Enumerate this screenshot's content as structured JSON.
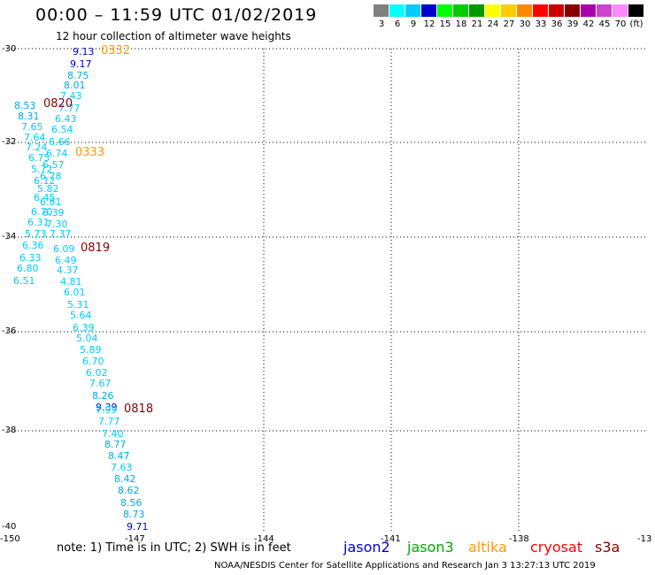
{
  "header": {
    "title": "00:00 – 11:59 UTC 01/02/2019",
    "subtitle": "12 hour collection of altimeter wave heights"
  },
  "scale": {
    "colors": [
      "#808080",
      "#00ffff",
      "#00ccff",
      "#0000cc",
      "#00ff00",
      "#00cc00",
      "#009900",
      "#ffff00",
      "#ffcc00",
      "#ff8800",
      "#ff0000",
      "#cc0000",
      "#880000",
      "#aa00aa",
      "#cc44cc",
      "#ff88ff",
      "#000000"
    ],
    "labels": [
      "3",
      "6",
      "9",
      "12",
      "15",
      "18",
      "21",
      "24",
      "27",
      "30",
      "33",
      "36",
      "39",
      "42",
      "45",
      "70",
      "(ft)"
    ]
  },
  "axes": {
    "lat_labels": [
      "-30",
      "-32",
      "-34",
      "-36",
      "-38",
      "-40"
    ],
    "lon_labels": [
      "-150",
      "-147",
      "-144",
      "-141",
      "-138",
      "-13"
    ]
  },
  "passes": [
    {
      "time": "0332",
      "color": "#ff9900"
    },
    {
      "time": "0820",
      "color": "#880000"
    },
    {
      "time": "0333",
      "color": "#ff9900"
    },
    {
      "time": "0819",
      "color": "#880000"
    },
    {
      "time": "0818",
      "color": "#880000"
    }
  ],
  "points": [
    {
      "v": "9.13",
      "c": "#0000cc"
    },
    {
      "v": "9.17",
      "c": "#0000cc"
    },
    {
      "v": "8.75",
      "c": "#00aaee"
    },
    {
      "v": "8.01",
      "c": "#00aaee"
    },
    {
      "v": "7.43",
      "c": "#00ccff"
    },
    {
      "v": "7.77",
      "c": "#00ccff"
    },
    {
      "v": "8.53",
      "c": "#00aaee"
    },
    {
      "v": "8.31",
      "c": "#00aaee"
    },
    {
      "v": "6.43",
      "c": "#00ccff"
    },
    {
      "v": "7.65",
      "c": "#00ccff"
    },
    {
      "v": "6.54",
      "c": "#00ccff"
    },
    {
      "v": "7.64",
      "c": "#00ccff"
    },
    {
      "v": "6.66",
      "c": "#00ccff"
    },
    {
      "v": "7.24",
      "c": "#00ccff"
    },
    {
      "v": "6.74",
      "c": "#00ccff"
    },
    {
      "v": "6.75",
      "c": "#00ccff"
    },
    {
      "v": "6.57",
      "c": "#00ccff"
    },
    {
      "v": "5.72",
      "c": "#00ccff"
    },
    {
      "v": "6.78",
      "c": "#00ccff"
    },
    {
      "v": "6.12",
      "c": "#00ccff"
    },
    {
      "v": "5.82",
      "c": "#00ccff"
    },
    {
      "v": "6.45",
      "c": "#00ccff"
    },
    {
      "v": "6.81",
      "c": "#00ccff"
    },
    {
      "v": "6.70",
      "c": "#00ccff"
    },
    {
      "v": "6.39",
      "c": "#00ccff"
    },
    {
      "v": "6.31",
      "c": "#00ccff"
    },
    {
      "v": "7.30",
      "c": "#00ccff"
    },
    {
      "v": "5.73",
      "c": "#00ccff"
    },
    {
      "v": "7.37",
      "c": "#00ccff"
    },
    {
      "v": "6.36",
      "c": "#00ccff"
    },
    {
      "v": "6.09",
      "c": "#00ccff"
    },
    {
      "v": "6.33",
      "c": "#00ccff"
    },
    {
      "v": "6.49",
      "c": "#00ccff"
    },
    {
      "v": "6.80",
      "c": "#00ccff"
    },
    {
      "v": "4.37",
      "c": "#00ccff"
    },
    {
      "v": "6.51",
      "c": "#00ccff"
    },
    {
      "v": "4.81",
      "c": "#00ccff"
    },
    {
      "v": "6.01",
      "c": "#00ccff"
    },
    {
      "v": "5.31",
      "c": "#00ccff"
    },
    {
      "v": "5.64",
      "c": "#00ccff"
    },
    {
      "v": "6.39",
      "c": "#00ccff"
    },
    {
      "v": "5.04",
      "c": "#00ccff"
    },
    {
      "v": "5.89",
      "c": "#00ccff"
    },
    {
      "v": "6.70",
      "c": "#00ccff"
    },
    {
      "v": "6.02",
      "c": "#00ccff"
    },
    {
      "v": "7.67",
      "c": "#00ccff"
    },
    {
      "v": "8.26",
      "c": "#00aaee"
    },
    {
      "v": "9.39",
      "c": "#0000cc"
    },
    {
      "v": "7.99",
      "c": "#00ccff"
    },
    {
      "v": "7.77",
      "c": "#00ccff"
    },
    {
      "v": "7.40",
      "c": "#00ccff"
    },
    {
      "v": "8.77",
      "c": "#00aaee"
    },
    {
      "v": "8.47",
      "c": "#00aaee"
    },
    {
      "v": "7.63",
      "c": "#00ccff"
    },
    {
      "v": "8.42",
      "c": "#00aaee"
    },
    {
      "v": "8.62",
      "c": "#00aaee"
    },
    {
      "v": "8.56",
      "c": "#00aaee"
    },
    {
      "v": "8.73",
      "c": "#00aaee"
    },
    {
      "v": "9.71",
      "c": "#0000cc"
    }
  ],
  "footer": {
    "note": "note: 1) Time is in UTC; 2) SWH is in feet",
    "satellites": [
      {
        "name": "jason2",
        "color": "#0000cc"
      },
      {
        "name": "jason3",
        "color": "#00aa00"
      },
      {
        "name": "altika",
        "color": "#ff9900"
      },
      {
        "name": "cryosat",
        "color": "#ff0000"
      },
      {
        "name": "s3a",
        "color": "#880000"
      }
    ],
    "credit": "NOAA/NESDIS Center for Satellite Applications and Research   Jan  3 13:27:13 UTC 2019"
  }
}
